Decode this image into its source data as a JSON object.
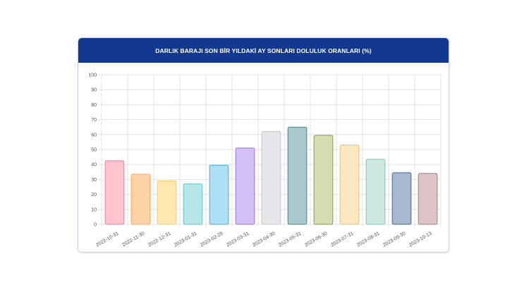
{
  "chart_data": {
    "type": "bar",
    "title": "DARLIK BARAJI SON BİR YILDAKİ AY SONLARI DOLULUK ORANLARI (%)",
    "categories": [
      "2022-10-31",
      "2022-11-30",
      "2022-12-31",
      "2023-01-31",
      "2023-02-28",
      "2023-03-31",
      "2023-04-30",
      "2023-05-31",
      "2023-06-30",
      "2023-07-31",
      "2023-08-31",
      "2023-09-30",
      "2023-10-13"
    ],
    "values": [
      42.5,
      33.5,
      29,
      27,
      39.5,
      51,
      62,
      65,
      59.5,
      53,
      43.5,
      34.5,
      34
    ],
    "ylim": [
      0,
      100
    ],
    "yticks": [
      "0",
      "10",
      "20",
      "30",
      "40",
      "50",
      "60",
      "70",
      "80",
      "90",
      "100"
    ],
    "grid": true,
    "bar_colors": [
      "#ffc4d0",
      "#ffd3a8",
      "#ffe8b0",
      "#b8e6e6",
      "#aee0f8",
      "#d4c1f8",
      "#e6e7ea",
      "#a9c8cc",
      "#d6dcb0",
      "#fbe7c2",
      "#cde8e1",
      "#a8b8d0",
      "#dec4c8"
    ],
    "bar_borders": [
      "#f07a95",
      "#f5a65c",
      "#f3c867",
      "#5cc4c4",
      "#4ba7e6",
      "#a06bee",
      "#c2c4c9",
      "#4e8089",
      "#8b9a42",
      "#e5c26f",
      "#7ec8b6",
      "#4c6790",
      "#a7787f"
    ]
  }
}
